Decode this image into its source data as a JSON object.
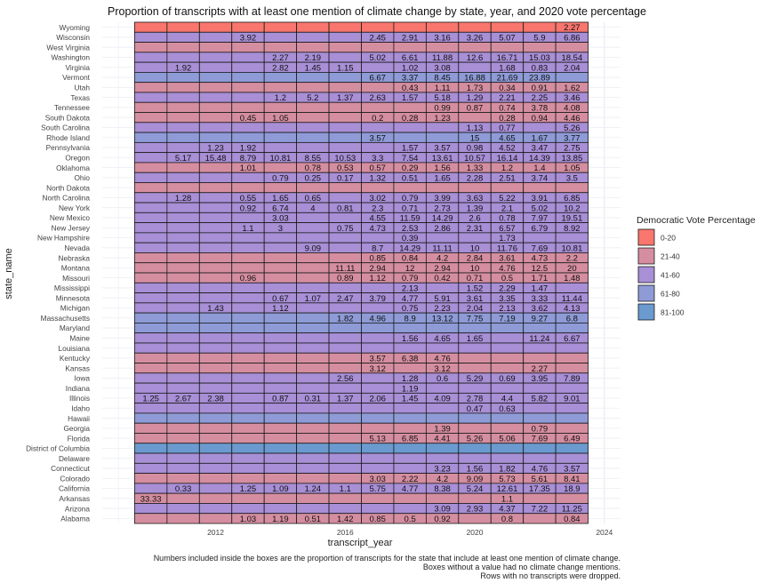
{
  "chart_data": {
    "type": "heatmap",
    "title": "Proportion of transcripts with at least one mention of climate change by state, year, and 2020 vote percentage",
    "xlabel": "transcript_year",
    "ylabel": "state_name",
    "x_ticks": [
      "2012",
      "2016",
      "2020",
      "2024"
    ],
    "x_tick_values": [
      2012,
      2016,
      2020,
      2024
    ],
    "xlim": [
      2008.5,
      2024.5
    ],
    "years": [
      2010,
      2011,
      2012,
      2013,
      2014,
      2015,
      2016,
      2017,
      2018,
      2019,
      2020,
      2021,
      2022,
      2023
    ],
    "grid": true,
    "legend": {
      "title": "Democratic Vote Percentage",
      "placement": "right",
      "entries": [
        {
          "label": "0-20",
          "color": "#F8766D"
        },
        {
          "label": "21-40",
          "color": "#D58EA0"
        },
        {
          "label": "41-60",
          "color": "#A88FD6"
        },
        {
          "label": "61-80",
          "color": "#8E9BD7"
        },
        {
          "label": "81-100",
          "color": "#6B9ACF"
        }
      ]
    },
    "rows": [
      {
        "state": "Wyoming",
        "cat": "0-20",
        "values": [
          null,
          null,
          null,
          null,
          null,
          null,
          null,
          null,
          null,
          null,
          null,
          null,
          null,
          2.27
        ]
      },
      {
        "state": "Wisconsin",
        "cat": "41-60",
        "values": [
          null,
          null,
          null,
          3.92,
          null,
          null,
          null,
          2.45,
          2.91,
          3.16,
          3.26,
          5.07,
          5.9,
          6.86
        ]
      },
      {
        "state": "West Virginia",
        "cat": "21-40",
        "values": [
          null,
          null,
          null,
          null,
          null,
          null,
          null,
          null,
          null,
          null,
          null,
          null,
          null,
          null
        ]
      },
      {
        "state": "Washington",
        "cat": "41-60",
        "values": [
          null,
          null,
          null,
          null,
          2.27,
          2.19,
          null,
          5.02,
          6.61,
          11.88,
          12.6,
          16.71,
          15.03,
          18.54
        ]
      },
      {
        "state": "Virginia",
        "cat": "41-60",
        "values": [
          null,
          1.92,
          null,
          null,
          2.82,
          1.45,
          1.15,
          null,
          1.02,
          3.08,
          null,
          1.68,
          0.83,
          2.04
        ]
      },
      {
        "state": "Vermont",
        "cat": "61-80",
        "values": [
          null,
          null,
          null,
          null,
          null,
          null,
          null,
          6.67,
          3.37,
          8.45,
          16.88,
          21.69,
          23.89,
          null
        ]
      },
      {
        "state": "Utah",
        "cat": "21-40",
        "values": [
          null,
          null,
          null,
          null,
          null,
          null,
          null,
          null,
          0.43,
          1.11,
          1.73,
          0.34,
          0.91,
          1.62
        ]
      },
      {
        "state": "Texas",
        "cat": "41-60",
        "values": [
          null,
          null,
          null,
          null,
          1.2,
          5.2,
          1.37,
          2.63,
          1.57,
          5.18,
          1.29,
          2.21,
          2.25,
          3.46
        ]
      },
      {
        "state": "Tennessee",
        "cat": "21-40",
        "values": [
          null,
          null,
          null,
          null,
          null,
          null,
          null,
          null,
          null,
          0.99,
          0.87,
          0.74,
          3.78,
          4.08
        ]
      },
      {
        "state": "South Dakota",
        "cat": "21-40",
        "values": [
          null,
          null,
          null,
          0.45,
          1.05,
          null,
          null,
          0.2,
          0.28,
          1.23,
          null,
          0.28,
          0.94,
          4.46
        ]
      },
      {
        "state": "South Carolina",
        "cat": "41-60",
        "values": [
          null,
          null,
          null,
          null,
          null,
          null,
          null,
          null,
          null,
          null,
          1.13,
          0.77,
          null,
          5.26
        ]
      },
      {
        "state": "Rhode Island",
        "cat": "61-80",
        "values": [
          null,
          null,
          null,
          null,
          null,
          null,
          null,
          3.57,
          null,
          null,
          15,
          4.65,
          1.67,
          3.77
        ]
      },
      {
        "state": "Pennsylvania",
        "cat": "41-60",
        "values": [
          null,
          null,
          1.23,
          1.92,
          null,
          null,
          null,
          null,
          1.57,
          3.57,
          0.98,
          4.52,
          3.47,
          2.75
        ]
      },
      {
        "state": "Oregon",
        "cat": "41-60",
        "values": [
          null,
          5.17,
          15.48,
          8.79,
          10.81,
          8.55,
          10.53,
          3.3,
          7.54,
          13.61,
          10.57,
          16.14,
          14.39,
          13.85
        ]
      },
      {
        "state": "Oklahoma",
        "cat": "21-40",
        "values": [
          null,
          null,
          null,
          1.01,
          null,
          0.78,
          0.53,
          0.57,
          0.29,
          1.56,
          1.33,
          1.2,
          1.4,
          1.05
        ]
      },
      {
        "state": "Ohio",
        "cat": "41-60",
        "values": [
          null,
          null,
          null,
          null,
          0.79,
          0.25,
          0.17,
          1.32,
          0.51,
          1.65,
          2.28,
          2.51,
          3.74,
          3.5
        ]
      },
      {
        "state": "North Dakota",
        "cat": "21-40",
        "values": [
          null,
          null,
          null,
          null,
          null,
          null,
          null,
          null,
          null,
          null,
          null,
          null,
          null,
          null
        ]
      },
      {
        "state": "North Carolina",
        "cat": "41-60",
        "values": [
          null,
          1.28,
          null,
          0.55,
          1.65,
          0.65,
          null,
          3.02,
          0.79,
          3.99,
          3.63,
          5.22,
          3.91,
          6.85
        ]
      },
      {
        "state": "New York",
        "cat": "41-60",
        "values": [
          null,
          null,
          null,
          0.92,
          6.74,
          4,
          0.81,
          2.3,
          0.71,
          2.73,
          1.39,
          2.1,
          5.02,
          10.2
        ]
      },
      {
        "state": "New Mexico",
        "cat": "41-60",
        "values": [
          null,
          null,
          null,
          null,
          3.03,
          null,
          null,
          4.55,
          11.59,
          14.29,
          2.6,
          0.78,
          7.97,
          19.51
        ]
      },
      {
        "state": "New Jersey",
        "cat": "41-60",
        "values": [
          null,
          null,
          null,
          1.1,
          3,
          null,
          0.75,
          4.73,
          2.53,
          2.86,
          2.31,
          6.57,
          6.79,
          8.92
        ]
      },
      {
        "state": "New Hampshire",
        "cat": "41-60",
        "values": [
          null,
          null,
          null,
          null,
          null,
          null,
          null,
          null,
          0.39,
          null,
          null,
          1.73,
          null,
          null
        ]
      },
      {
        "state": "Nevada",
        "cat": "41-60",
        "values": [
          null,
          null,
          null,
          null,
          null,
          9.09,
          null,
          8.7,
          14.29,
          11.11,
          10,
          11.76,
          7.69,
          10.81
        ]
      },
      {
        "state": "Nebraska",
        "cat": "21-40",
        "values": [
          null,
          null,
          null,
          null,
          null,
          null,
          null,
          0.85,
          0.84,
          4.2,
          2.84,
          3.61,
          4.73,
          2.2
        ]
      },
      {
        "state": "Montana",
        "cat": "21-40",
        "values": [
          null,
          null,
          null,
          null,
          null,
          null,
          11.11,
          2.94,
          12,
          2.94,
          10,
          4.76,
          12.5,
          20
        ]
      },
      {
        "state": "Missouri",
        "cat": "21-40",
        "values": [
          null,
          null,
          null,
          0.96,
          null,
          null,
          0.89,
          1.12,
          0.79,
          0.42,
          0.71,
          0.5,
          1.71,
          1.48
        ]
      },
      {
        "state": "Mississippi",
        "cat": "41-60",
        "values": [
          null,
          null,
          null,
          null,
          null,
          null,
          null,
          null,
          2.13,
          null,
          1.52,
          2.29,
          1.47,
          null
        ]
      },
      {
        "state": "Minnesota",
        "cat": "41-60",
        "values": [
          null,
          null,
          null,
          null,
          0.67,
          1.07,
          2.47,
          3.79,
          4.77,
          5.91,
          3.61,
          3.35,
          3.33,
          11.44
        ]
      },
      {
        "state": "Michigan",
        "cat": "41-60",
        "values": [
          null,
          null,
          1.43,
          null,
          1.12,
          null,
          null,
          null,
          0.75,
          2.23,
          2.04,
          2.13,
          3.62,
          4.13
        ]
      },
      {
        "state": "Massachusetts",
        "cat": "61-80",
        "values": [
          null,
          null,
          null,
          null,
          null,
          null,
          1.82,
          4.96,
          8.9,
          13.12,
          7.75,
          7.19,
          9.27,
          6.8
        ]
      },
      {
        "state": "Maryland",
        "cat": "61-80",
        "values": [
          null,
          null,
          null,
          null,
          null,
          null,
          null,
          null,
          null,
          null,
          null,
          null,
          null,
          null
        ]
      },
      {
        "state": "Maine",
        "cat": "41-60",
        "values": [
          null,
          null,
          null,
          null,
          null,
          null,
          null,
          null,
          1.56,
          4.65,
          1.65,
          null,
          11.24,
          6.67
        ]
      },
      {
        "state": "Louisiana",
        "cat": "41-60",
        "values": [
          null,
          null,
          null,
          null,
          null,
          null,
          null,
          null,
          null,
          null,
          null,
          null,
          null,
          null
        ]
      },
      {
        "state": "Kentucky",
        "cat": "21-40",
        "values": [
          null,
          null,
          null,
          null,
          null,
          null,
          null,
          3.57,
          6.38,
          4.76,
          null,
          null,
          null,
          null
        ]
      },
      {
        "state": "Kansas",
        "cat": "21-40",
        "values": [
          null,
          null,
          null,
          null,
          null,
          null,
          null,
          3.12,
          null,
          3.12,
          null,
          null,
          2.27,
          null
        ]
      },
      {
        "state": "Iowa",
        "cat": "41-60",
        "values": [
          null,
          null,
          null,
          null,
          null,
          null,
          2.56,
          null,
          1.28,
          0.6,
          5.29,
          0.69,
          3.95,
          7.89
        ]
      },
      {
        "state": "Indiana",
        "cat": "41-60",
        "values": [
          null,
          null,
          null,
          null,
          null,
          null,
          null,
          null,
          1.19,
          null,
          null,
          null,
          null,
          null
        ]
      },
      {
        "state": "Illinois",
        "cat": "41-60",
        "values": [
          1.25,
          2.67,
          2.38,
          null,
          0.87,
          0.31,
          1.37,
          2.06,
          1.45,
          4.09,
          2.78,
          4.4,
          5.82,
          9.01
        ]
      },
      {
        "state": "Idaho",
        "cat": "41-60",
        "values": [
          null,
          null,
          null,
          null,
          null,
          null,
          null,
          null,
          null,
          null,
          0.47,
          0.63,
          null,
          null
        ]
      },
      {
        "state": "Hawaii",
        "cat": "61-80",
        "values": [
          null,
          null,
          null,
          null,
          null,
          null,
          null,
          null,
          null,
          null,
          null,
          null,
          null,
          null
        ]
      },
      {
        "state": "Georgia",
        "cat": "21-40",
        "values": [
          null,
          null,
          null,
          null,
          null,
          null,
          null,
          null,
          null,
          1.39,
          null,
          null,
          0.79,
          null
        ]
      },
      {
        "state": "Florida",
        "cat": "21-40",
        "values": [
          null,
          null,
          null,
          null,
          null,
          null,
          null,
          5.13,
          6.85,
          4.41,
          5.26,
          5.06,
          7.69,
          6.49
        ]
      },
      {
        "state": "District of Columbia",
        "cat": "81-100",
        "values": [
          null,
          null,
          null,
          null,
          null,
          null,
          null,
          null,
          null,
          null,
          null,
          null,
          null,
          null
        ]
      },
      {
        "state": "Delaware",
        "cat": "41-60",
        "values": [
          null,
          null,
          null,
          null,
          null,
          null,
          null,
          null,
          null,
          null,
          null,
          null,
          null,
          null
        ]
      },
      {
        "state": "Connecticut",
        "cat": "41-60",
        "values": [
          null,
          null,
          null,
          null,
          null,
          null,
          null,
          null,
          null,
          3.23,
          1.56,
          1.82,
          4.76,
          3.57
        ]
      },
      {
        "state": "Colorado",
        "cat": "21-40",
        "values": [
          null,
          null,
          null,
          null,
          null,
          null,
          null,
          3.03,
          2.22,
          4.2,
          9.09,
          5.73,
          5.61,
          8.41
        ]
      },
      {
        "state": "California",
        "cat": "41-60",
        "values": [
          null,
          0.33,
          null,
          1.25,
          1.09,
          1.24,
          1.1,
          5.75,
          4.77,
          8.38,
          5.24,
          12.61,
          17.35,
          18.9
        ]
      },
      {
        "state": "Arkansas",
        "cat": "21-40",
        "values": [
          33.33,
          null,
          null,
          null,
          null,
          null,
          null,
          null,
          null,
          null,
          null,
          1.1,
          null,
          null
        ]
      },
      {
        "state": "Arizona",
        "cat": "41-60",
        "values": [
          null,
          null,
          null,
          null,
          null,
          null,
          null,
          null,
          null,
          3.09,
          2.93,
          4.37,
          7.22,
          11.25
        ]
      },
      {
        "state": "Alabama",
        "cat": "21-40",
        "values": [
          null,
          null,
          null,
          1.03,
          1.19,
          0.51,
          1.42,
          0.85,
          0.5,
          0.92,
          null,
          0.8,
          null,
          0.84
        ]
      }
    ],
    "caption_lines": [
      "Numbers included inside the boxes are the proportion of transcripts for the state that include at least one mention of climate change.",
      "Boxes without a value had no climate change mentions.",
      "Rows with no transcripts were dropped."
    ]
  }
}
